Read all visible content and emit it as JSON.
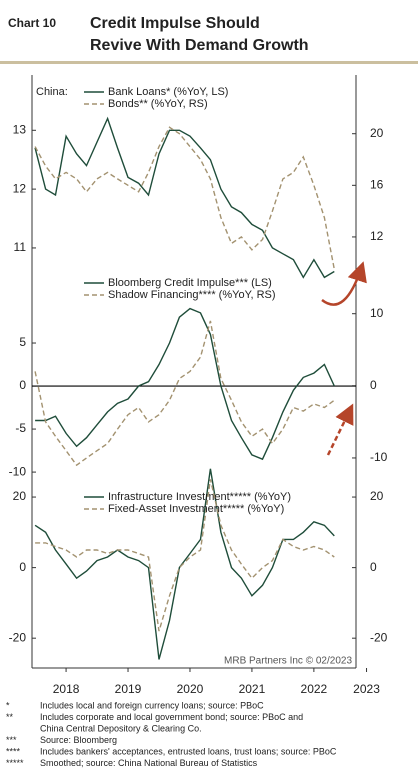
{
  "header": {
    "label": "Chart 10",
    "title_lines": [
      "Credit Impulse Should",
      "Revive With Demand Growth"
    ]
  },
  "chart_data": [
    {
      "type": "line",
      "legend_title": "China:",
      "x": [
        2018,
        2018.17,
        2018.33,
        2018.5,
        2018.67,
        2018.83,
        2019,
        2019.17,
        2019.33,
        2019.5,
        2019.67,
        2019.83,
        2020,
        2020.17,
        2020.33,
        2020.5,
        2020.67,
        2020.83,
        2021,
        2021.17,
        2021.33,
        2021.5,
        2021.67,
        2021.83,
        2022,
        2022.17,
        2022.33,
        2022.5,
        2022.67,
        2022.83
      ],
      "xlim": [
        2017.95,
        2023.18
      ],
      "ylim": [
        10.2,
        13.6
      ],
      "yticks": [
        11,
        12,
        13
      ],
      "y2lim": [
        7.5,
        23
      ],
      "y2ticks": [
        12,
        16,
        20
      ],
      "series": [
        {
          "name": "Bank Loans* (%YoY, LS)",
          "color": "#1f4d3a",
          "dashed": false,
          "values": [
            12.7,
            12.0,
            11.9,
            12.9,
            12.6,
            12.4,
            12.8,
            13.2,
            12.7,
            12.2,
            12.1,
            11.9,
            12.6,
            13.0,
            13.0,
            12.9,
            12.7,
            12.5,
            12.0,
            11.7,
            11.6,
            11.4,
            11.3,
            11.0,
            10.9,
            10.8,
            10.5,
            10.8,
            10.5,
            10.6
          ]
        },
        {
          "name": "Bonds** (%YoY, RS)",
          "color": "#a39270",
          "dashed": true,
          "axis": "y2",
          "values": [
            19,
            17.5,
            16.5,
            17,
            16.5,
            15.5,
            16.5,
            17,
            16.5,
            16,
            15.5,
            17,
            19,
            20.5,
            20,
            19,
            18,
            16.5,
            13.5,
            11.5,
            12,
            11,
            11.8,
            14,
            16.5,
            17,
            18.2,
            16,
            13.5,
            9.5
          ]
        }
      ]
    },
    {
      "type": "line",
      "zero_line": true,
      "x": [
        2018,
        2018.17,
        2018.33,
        2018.5,
        2018.67,
        2018.83,
        2019,
        2019.17,
        2019.33,
        2019.5,
        2019.67,
        2019.83,
        2020,
        2020.17,
        2020.33,
        2020.5,
        2020.67,
        2020.83,
        2021,
        2021.17,
        2021.33,
        2021.5,
        2021.67,
        2021.83,
        2022,
        2022.17,
        2022.33,
        2022.5,
        2022.67,
        2022.83
      ],
      "xlim": [
        2017.95,
        2023.18
      ],
      "ylim": [
        -11.5,
        10
      ],
      "yticks": [
        -10,
        -5,
        0,
        5
      ],
      "y2lim": [
        -13.75,
        11.9
      ],
      "y2ticks": [
        -10,
        0,
        10
      ],
      "series": [
        {
          "name": "Bloomberg Credit Impulse*** (LS)",
          "color": "#1f4d3a",
          "dashed": false,
          "values": [
            -4,
            -4,
            -3.5,
            -5.5,
            -7,
            -6,
            -4.5,
            -3,
            -2,
            -1.5,
            0,
            0.5,
            2.5,
            5,
            8,
            9,
            8.5,
            6,
            0,
            -4,
            -6,
            -8,
            -8.5,
            -6,
            -3,
            -0.5,
            1,
            1.5,
            2.5,
            0
          ]
        },
        {
          "name": "Shadow Financing**** (%YoY, RS)",
          "color": "#a39270",
          "dashed": true,
          "axis": "y2",
          "values": [
            2,
            -5,
            -7,
            -9,
            -11,
            -10,
            -9,
            -8,
            -6,
            -4,
            -3,
            -5,
            -4,
            -2,
            1,
            2,
            4,
            9,
            1,
            -2,
            -5,
            -7,
            -6,
            -8,
            -6,
            -3,
            -3.5,
            -2.5,
            -3,
            -2
          ]
        }
      ]
    },
    {
      "type": "line",
      "source": "MRB Partners Inc © 02/2023",
      "x": [
        2018,
        2018.17,
        2018.33,
        2018.5,
        2018.67,
        2018.83,
        2019,
        2019.17,
        2019.33,
        2019.5,
        2019.67,
        2019.83,
        2020,
        2020.17,
        2020.33,
        2020.5,
        2020.67,
        2020.83,
        2021,
        2021.17,
        2021.33,
        2021.5,
        2021.67,
        2021.83,
        2022,
        2022.17,
        2022.33,
        2022.5,
        2022.67,
        2022.83
      ],
      "xlim": [
        2017.95,
        2023.18
      ],
      "xticks": [
        {
          "value": 2018.5,
          "label": "2018"
        },
        {
          "value": 2019.5,
          "label": "2019"
        },
        {
          "value": 2020.5,
          "label": "2020"
        },
        {
          "value": 2021.5,
          "label": "2021"
        },
        {
          "value": 2022.5,
          "label": "2022"
        },
        {
          "value": 2023.35,
          "label": "2023"
        }
      ],
      "ylim": [
        -27.6,
        22
      ],
      "yticks": [
        -20,
        0,
        20
      ],
      "y2lim": [
        -27.6,
        22
      ],
      "y2ticks": [
        -20,
        0,
        20
      ],
      "series": [
        {
          "name": "Infrastructure Investment***** (%YoY)",
          "color": "#1f4d3a",
          "dashed": false,
          "values": [
            12,
            10,
            5,
            1,
            -3,
            -1,
            2,
            3,
            5,
            3,
            2,
            0,
            -26,
            -15,
            0,
            4,
            8,
            28,
            10,
            0,
            -3,
            -8,
            -5,
            0,
            8,
            8,
            10,
            13,
            12,
            9
          ]
        },
        {
          "name": "Fixed-Asset Investment***** (%YoY)",
          "color": "#a39270",
          "dashed": true,
          "axis": "y2",
          "values": [
            7,
            7,
            6,
            5,
            3,
            5,
            5,
            4,
            5,
            5,
            4,
            3,
            -18,
            -8,
            0,
            3,
            5,
            25,
            12,
            5,
            1,
            -3,
            0,
            2,
            8,
            6,
            5,
            6,
            5,
            3
          ]
        }
      ]
    }
  ],
  "footnotes": [
    {
      "mark": "*",
      "lines": [
        "Includes local and foreign currency loans; source: PBoC"
      ]
    },
    {
      "mark": "**",
      "lines": [
        "Includes corporate and local government bond; source: PBoC and",
        "China Central Depository & Clearing Co."
      ]
    },
    {
      "mark": "***",
      "lines": [
        "Source: Bloomberg"
      ]
    },
    {
      "mark": "****",
      "lines": [
        "Includes bankers' acceptances, entrusted loans, trust loans;  source: PBoC"
      ]
    },
    {
      "mark": "*****",
      "lines": [
        "Smoothed; source: China National Bureau of Statistics"
      ]
    }
  ]
}
